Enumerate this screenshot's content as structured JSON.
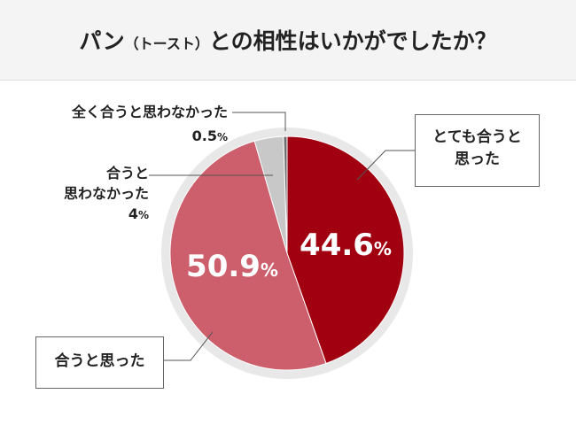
{
  "title": {
    "main_before": "パン",
    "sub": "（トースト）",
    "main_after": "との相性はいかがでしたか？"
  },
  "chart_data": {
    "type": "pie",
    "percent_unit": "%",
    "slices": [
      {
        "label": "とても合うと思った",
        "label_lines": [
          "とても合うと",
          "思った"
        ],
        "value": 44.6,
        "display": "44.6",
        "color": "#a10010"
      },
      {
        "label": "合うと思った",
        "label_lines": [
          "合うと思った"
        ],
        "value": 50.9,
        "display": "50.9",
        "color": "#cd5f6c"
      },
      {
        "label": "合うと思わなかった",
        "label_lines": [
          "合うと",
          "思わなかった"
        ],
        "value": 4,
        "display": "4",
        "color": "#c8c8c8"
      },
      {
        "label": "全く合うと思わなかった",
        "label_lines": [
          "全く合うと思わなかった"
        ],
        "value": 0.5,
        "display": "0.5",
        "color": "#707070"
      }
    ],
    "ring_color": "#e8e8e8",
    "start": "top",
    "direction": "clockwise"
  }
}
